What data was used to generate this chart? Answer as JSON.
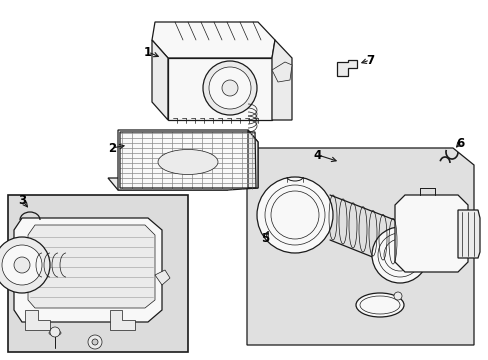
{
  "bg_color": "#ffffff",
  "lc": "#1a1a1a",
  "gray_panel": "#e0e0e0",
  "gray_box3": "#dcdcdc",
  "white": "#ffffff",
  "near_white": "#f8f8f8",
  "light_gray": "#ebebeb",
  "figsize": [
    4.89,
    3.6
  ],
  "dpi": 100,
  "label_positions": {
    "1": [
      155,
      310,
      175,
      305
    ],
    "2": [
      118,
      248,
      138,
      238
    ],
    "3": [
      22,
      196,
      30,
      188
    ],
    "4": [
      315,
      175,
      330,
      165
    ],
    "5": [
      264,
      227,
      270,
      218
    ],
    "6": [
      447,
      148,
      443,
      155
    ],
    "7": [
      352,
      65,
      342,
      70
    ]
  }
}
